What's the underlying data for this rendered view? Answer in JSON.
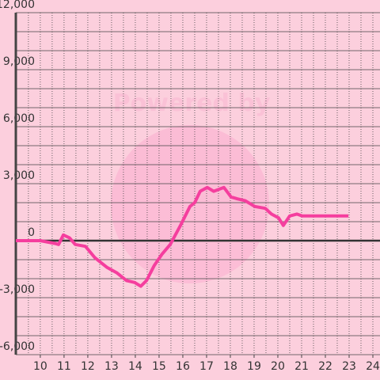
{
  "chart_data": {
    "type": "line",
    "watermark": "Powered by",
    "x": [
      8.97,
      10.0,
      10.63,
      10.77,
      10.97,
      11.23,
      11.47,
      11.9,
      12.3,
      12.8,
      13.23,
      13.63,
      13.97,
      14.23,
      14.47,
      14.8,
      15.13,
      15.47,
      15.9,
      16.3,
      16.5,
      16.73,
      17.03,
      17.3,
      17.73,
      18.03,
      18.3,
      18.63,
      19.03,
      19.47,
      19.73,
      20.03,
      20.23,
      20.5,
      20.8,
      21.03,
      22.97
    ],
    "series": [
      {
        "color": "#f53e9e",
        "values": [
          0,
          0,
          -150,
          -200,
          300,
          150,
          -200,
          -300,
          -900,
          -1400,
          -1700,
          -2100,
          -2200,
          -2400,
          -2100,
          -1300,
          -700,
          -200,
          800,
          1800,
          2000,
          2600,
          2800,
          2600,
          2800,
          2300,
          2200,
          2100,
          1800,
          1700,
          1400,
          1200,
          800,
          1300,
          1400,
          1300,
          1300
        ]
      }
    ],
    "xlim": [
      8.97,
      24.3
    ],
    "xticks": [
      10,
      11,
      12,
      13,
      14,
      15,
      16,
      17,
      18,
      19,
      20,
      21,
      22,
      23,
      24
    ],
    "ylim": [
      -6000,
      12000
    ],
    "yticks": [
      {
        "value": -6000,
        "label": "-6,000"
      },
      {
        "value": -3000,
        "label": "-3,000"
      },
      0,
      {
        "value": 3000,
        "label": "3,000"
      },
      {
        "value": 6000,
        "label": "6,000"
      },
      {
        "value": 9000,
        "label": "9,000"
      },
      {
        "value": 12000,
        "label": "12,000"
      }
    ],
    "grid": true
  }
}
